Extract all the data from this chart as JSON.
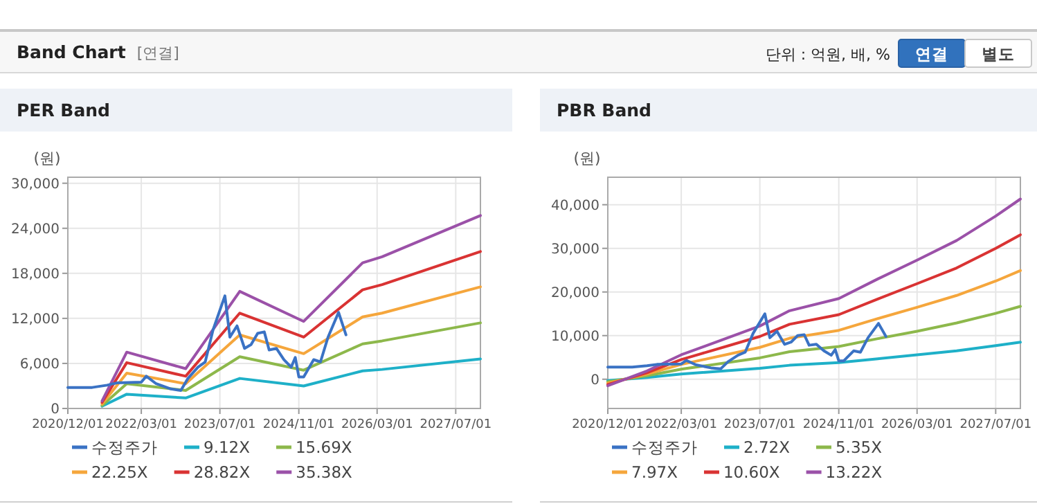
{
  "chart_data": [
    {
      "type": "other",
      "title": "Band Chart",
      "annotations": [
        "[연결]",
        "단위 : 억원, 배, %",
        "연결",
        "별도"
      ]
    },
    {
      "type": "line",
      "title": "PER Band",
      "ylabel": "(원)",
      "grid": true,
      "legend": "bottom",
      "xlim": [
        "2020-12-01",
        "2027-12-01"
      ],
      "xticks": [
        {
          "value": "2020-12-01",
          "label": "2020/12/01"
        },
        {
          "value": "2022-03-01",
          "label": "2022/03/01"
        },
        {
          "value": "2023-07-01",
          "label": "2023/07/01"
        },
        {
          "value": "2024-11-01",
          "label": "2024/11/01"
        },
        {
          "value": "2026-03-01",
          "label": "2026/03/01"
        },
        {
          "value": "2027-07-01",
          "label": "2027/07/01"
        }
      ],
      "ylim": [
        0,
        30800
      ],
      "yticks": [
        0,
        {
          "value": 6000,
          "label": "6,000"
        },
        {
          "value": 12000,
          "label": "12,000"
        },
        {
          "value": 18000,
          "label": "18,000"
        },
        {
          "value": 24000,
          "label": "24,000"
        },
        {
          "value": 30000,
          "label": "30,000"
        }
      ],
      "series": [
        {
          "name": "수정주가",
          "color": "#3a72c4",
          "x": [
            "2020-12-01",
            "2021-05-01",
            "2021-08-01",
            "2021-10-01",
            "2022-03-01",
            "2022-04-01",
            "2022-06-01",
            "2022-09-01",
            "2022-11-01",
            "2022-12-15",
            "2023-02-15",
            "2023-04-01",
            "2023-05-20",
            "2023-08-01",
            "2023-09-01",
            "2023-10-15",
            "2023-12-01",
            "2024-01-10",
            "2024-02-20",
            "2024-04-01",
            "2024-05-01",
            "2024-06-15",
            "2024-08-01",
            "2024-09-15",
            "2024-10-10",
            "2024-11-01",
            "2024-12-01",
            "2025-02-01",
            "2025-03-15",
            "2025-05-01",
            "2025-07-05",
            "2025-08-20"
          ],
          "values": [
            2800,
            2800,
            3100,
            3400,
            3500,
            4300,
            3300,
            2600,
            2400,
            4000,
            5500,
            6200,
            10500,
            15000,
            9500,
            11000,
            8000,
            8500,
            10000,
            10200,
            7800,
            8000,
            6500,
            5500,
            6800,
            4200,
            4200,
            6500,
            6200,
            9500,
            12800,
            9800
          ]
        },
        {
          "name": "9.12X",
          "color": "#1eb0c8",
          "x": [
            "2021-07-01",
            "2021-12-01",
            "2022-12-01",
            "2023-11-01",
            "2024-12-01",
            "2025-12-01",
            "2026-04-01",
            "2027-12-01"
          ],
          "values": [
            300,
            1900,
            1400,
            4000,
            3000,
            5000,
            5200,
            6600
          ]
        },
        {
          "name": "15.69X",
          "color": "#8db84b",
          "x": [
            "2021-07-01",
            "2021-12-01",
            "2022-12-01",
            "2023-11-01",
            "2024-12-01",
            "2025-12-01",
            "2026-04-01",
            "2027-12-01"
          ],
          "values": [
            400,
            3300,
            2400,
            6900,
            5100,
            8600,
            9000,
            11400
          ]
        },
        {
          "name": "22.25X",
          "color": "#f5a63c",
          "x": [
            "2021-07-01",
            "2021-12-01",
            "2022-12-01",
            "2023-11-01",
            "2024-12-01",
            "2025-12-01",
            "2026-04-01",
            "2027-12-01"
          ],
          "values": [
            600,
            4700,
            3300,
            9800,
            7300,
            12200,
            12700,
            16200
          ]
        },
        {
          "name": "28.82X",
          "color": "#d93333",
          "x": [
            "2021-07-01",
            "2021-12-01",
            "2022-12-01",
            "2023-11-01",
            "2024-12-01",
            "2025-12-01",
            "2026-04-01",
            "2027-12-01"
          ],
          "values": [
            800,
            6100,
            4300,
            12700,
            9500,
            15800,
            16500,
            20900
          ]
        },
        {
          "name": "35.38X",
          "color": "#9b51a8",
          "x": [
            "2021-07-01",
            "2021-12-01",
            "2022-12-01",
            "2023-11-01",
            "2024-12-01",
            "2025-12-01",
            "2026-04-01",
            "2027-12-01"
          ],
          "values": [
            1000,
            7500,
            5300,
            15600,
            11600,
            19400,
            20200,
            25700
          ]
        }
      ]
    },
    {
      "type": "line",
      "title": "PBR Band",
      "ylabel": "(원)",
      "grid": true,
      "legend": "bottom",
      "xlim": [
        "2020-12-01",
        "2027-12-01"
      ],
      "xticks": [
        {
          "value": "2020-12-01",
          "label": "2020/12/01"
        },
        {
          "value": "2022-03-01",
          "label": "2022/03/01"
        },
        {
          "value": "2023-07-01",
          "label": "2023/07/01"
        },
        {
          "value": "2024-11-01",
          "label": "2024/11/01"
        },
        {
          "value": "2026-03-01",
          "label": "2026/03/01"
        },
        {
          "value": "2027-07-01",
          "label": "2027/07/01"
        }
      ],
      "ylim": [
        -6700,
        46300
      ],
      "yticks": [
        0,
        {
          "value": 10000,
          "label": "10,000"
        },
        {
          "value": 20000,
          "label": "20,000"
        },
        {
          "value": 30000,
          "label": "30,000"
        },
        {
          "value": 40000,
          "label": "40,000"
        }
      ],
      "series": [
        {
          "name": "수정주가",
          "color": "#3a72c4",
          "x": [
            "2020-12-01",
            "2021-05-01",
            "2021-08-01",
            "2021-10-01",
            "2022-03-01",
            "2022-04-01",
            "2022-06-01",
            "2022-09-01",
            "2022-11-01",
            "2022-12-15",
            "2023-02-15",
            "2023-04-01",
            "2023-05-20",
            "2023-08-01",
            "2023-09-01",
            "2023-10-15",
            "2023-12-01",
            "2024-01-10",
            "2024-02-20",
            "2024-04-01",
            "2024-05-01",
            "2024-06-15",
            "2024-08-01",
            "2024-09-15",
            "2024-10-10",
            "2024-11-01",
            "2024-12-01",
            "2025-02-01",
            "2025-03-15",
            "2025-05-01",
            "2025-07-05",
            "2025-08-20"
          ],
          "values": [
            2800,
            2800,
            3100,
            3400,
            3500,
            4300,
            3300,
            2600,
            2400,
            4000,
            5500,
            6200,
            10500,
            15000,
            9500,
            11000,
            8000,
            8500,
            10000,
            10200,
            7800,
            8000,
            6500,
            5500,
            6800,
            4200,
            4200,
            6500,
            6200,
            9500,
            12800,
            9800
          ]
        },
        {
          "name": "2.72X",
          "color": "#1eb0c8",
          "x": [
            "2020-12-01",
            "2021-08-01",
            "2022-03-01",
            "2023-07-01",
            "2024-01-01",
            "2024-11-01",
            "2025-07-01",
            "2026-03-01",
            "2026-11-01",
            "2027-07-01",
            "2027-12-01"
          ],
          "values": [
            -300,
            400,
            1200,
            2500,
            3200,
            3800,
            4700,
            5600,
            6500,
            7700,
            8500
          ]
        },
        {
          "name": "5.35X",
          "color": "#8db84b",
          "x": [
            "2020-12-01",
            "2021-08-01",
            "2022-03-01",
            "2023-07-01",
            "2024-01-01",
            "2024-11-01",
            "2025-07-01",
            "2026-03-01",
            "2026-11-01",
            "2027-07-01",
            "2027-12-01"
          ],
          "values": [
            -600,
            800,
            2300,
            4900,
            6300,
            7500,
            9300,
            11000,
            12900,
            15100,
            16700
          ]
        },
        {
          "name": "7.97X",
          "color": "#f5a63c",
          "x": [
            "2020-12-01",
            "2021-08-01",
            "2022-03-01",
            "2023-07-01",
            "2024-01-01",
            "2024-11-01",
            "2025-07-01",
            "2026-03-01",
            "2026-11-01",
            "2027-07-01",
            "2027-12-01"
          ],
          "values": [
            -900,
            1200,
            3400,
            7300,
            9400,
            11200,
            13900,
            16500,
            19200,
            22500,
            24900
          ]
        },
        {
          "name": "10.60X",
          "color": "#d93333",
          "x": [
            "2020-12-01",
            "2021-08-01",
            "2022-03-01",
            "2023-07-01",
            "2024-01-01",
            "2024-11-01",
            "2025-07-01",
            "2026-03-01",
            "2026-11-01",
            "2027-07-01",
            "2027-12-01"
          ],
          "values": [
            -1200,
            1500,
            4500,
            9800,
            12600,
            14800,
            18400,
            21900,
            25500,
            30000,
            33100
          ]
        },
        {
          "name": "13.22X",
          "color": "#9b51a8",
          "x": [
            "2020-12-01",
            "2021-08-01",
            "2022-03-01",
            "2023-07-01",
            "2024-01-01",
            "2024-11-01",
            "2025-07-01",
            "2026-03-01",
            "2026-11-01",
            "2027-07-01",
            "2027-12-01"
          ],
          "values": [
            -1500,
            1900,
            5600,
            12200,
            15700,
            18500,
            23000,
            27300,
            31800,
            37400,
            41300
          ]
        }
      ]
    }
  ]
}
